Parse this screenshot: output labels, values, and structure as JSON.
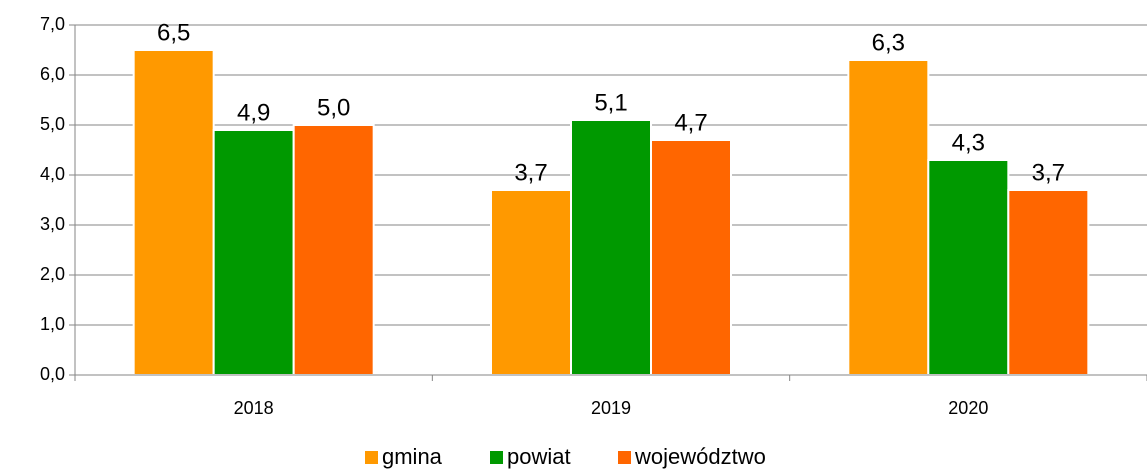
{
  "chart_data": {
    "type": "bar",
    "categories": [
      "2018",
      "2019",
      "2020"
    ],
    "series": [
      {
        "name": "gmina",
        "color": "#ff9900",
        "values": [
          6.5,
          3.7,
          6.3
        ],
        "value_labels": [
          "6,5",
          "3,7",
          "6,3"
        ]
      },
      {
        "name": "powiat",
        "color": "#009900",
        "values": [
          4.9,
          5.1,
          4.3
        ],
        "value_labels": [
          "4,9",
          "5,1",
          "4,3"
        ]
      },
      {
        "name": "województwo",
        "color": "#ff6600",
        "values": [
          5.0,
          4.7,
          3.7
        ],
        "value_labels": [
          "5,0",
          "4,7",
          "3,7"
        ]
      }
    ],
    "ylim": [
      0,
      7
    ],
    "yticks": [
      {
        "value": 0,
        "label": "0,0"
      },
      {
        "value": 1,
        "label": "1,0"
      },
      {
        "value": 2,
        "label": "2,0"
      },
      {
        "value": 3,
        "label": "3,0"
      },
      {
        "value": 4,
        "label": "4,0"
      },
      {
        "value": 5,
        "label": "5,0"
      },
      {
        "value": 6,
        "label": "6,0"
      },
      {
        "value": 7,
        "label": "7,0"
      }
    ],
    "grid": true,
    "legend": "bottom"
  }
}
